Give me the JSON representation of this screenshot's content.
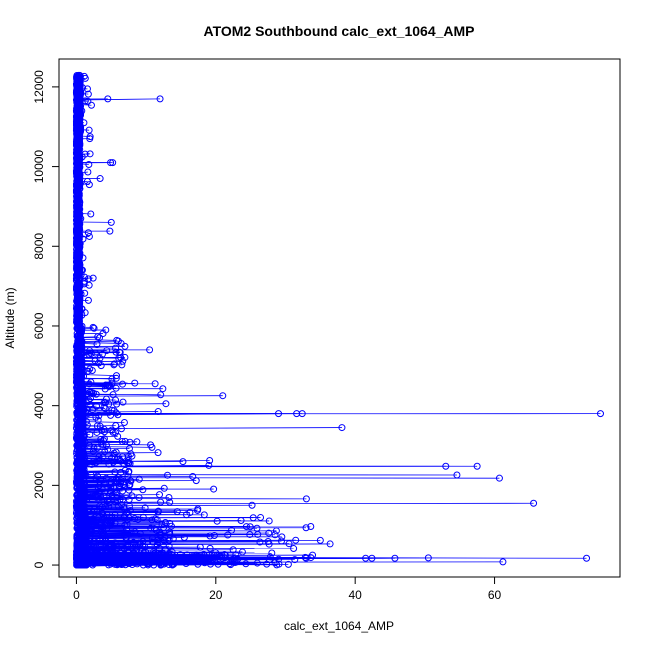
{
  "chart_data": {
    "type": "scatter",
    "title": "ATOM2 Southbound calc_ext_1064_AMP",
    "xlabel": "calc_ext_1064_AMP",
    "ylabel": "Altitude (m)",
    "xlim": [
      -2.5,
      78.0
    ],
    "ylim": [
      -300,
      12700
    ],
    "x_ticks": [
      0,
      20,
      40,
      60
    ],
    "y_ticks": [
      0,
      2000,
      4000,
      6000,
      8000,
      10000,
      12000
    ],
    "grid": false,
    "legend": "none",
    "series_color": "#0000ff",
    "marker": "open-circle",
    "connected": true,
    "notable_points": [
      {
        "x": 75.2,
        "y": 3800
      },
      {
        "x": 73.2,
        "y": 170
      },
      {
        "x": 65.6,
        "y": 1550
      },
      {
        "x": 61.2,
        "y": 80
      },
      {
        "x": 60.7,
        "y": 2180
      },
      {
        "x": 57.5,
        "y": 2480
      },
      {
        "x": 54.6,
        "y": 2260
      },
      {
        "x": 53.0,
        "y": 2480
      },
      {
        "x": 50.5,
        "y": 180
      },
      {
        "x": 45.7,
        "y": 170
      },
      {
        "x": 42.4,
        "y": 170
      },
      {
        "x": 41.5,
        "y": 170
      },
      {
        "x": 38.1,
        "y": 3450
      },
      {
        "x": 32.4,
        "y": 3800
      },
      {
        "x": 31.6,
        "y": 3800
      },
      {
        "x": 33.0,
        "y": 1660
      },
      {
        "x": 29.0,
        "y": 3800
      },
      {
        "x": 21.0,
        "y": 4250
      },
      {
        "x": 12.0,
        "y": 11700
      },
      {
        "x": 4.5,
        "y": 11700
      },
      {
        "x": 5.2,
        "y": 10100
      },
      {
        "x": 4.9,
        "y": 10100
      },
      {
        "x": 3.4,
        "y": 9700
      },
      {
        "x": 5.0,
        "y": 8600
      },
      {
        "x": 4.8,
        "y": 8380
      },
      {
        "x": 2.4,
        "y": 7200
      },
      {
        "x": 10.5,
        "y": 5400
      },
      {
        "x": 19.0,
        "y": 2500
      },
      {
        "x": 25.2,
        "y": 1500
      },
      {
        "x": 36.4,
        "y": 530
      },
      {
        "x": 35.0,
        "y": 620
      },
      {
        "x": 28.5,
        "y": 760
      }
    ]
  }
}
